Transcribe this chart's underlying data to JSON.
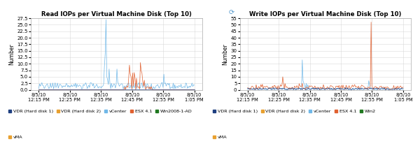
{
  "title_left": "Read IOPs per Virtual Machine Disk (Top 10)",
  "title_right": "Write IOPs per Virtual Machine Disk (Top 10)",
  "ylabel": "Number",
  "xlabel_dates": [
    "8/5/10",
    "8/5/10",
    "8/5/10",
    "8/5/10",
    "8/5/10",
    "8/5/10"
  ],
  "xlabel_times": [
    "12:15 PM",
    "12:25 PM",
    "12:35 PM",
    "12:45 PM",
    "12:55 PM",
    "1:05 PM"
  ],
  "ylim_left": [
    0,
    27.5
  ],
  "yticks_left": [
    0.0,
    2.5,
    5.0,
    7.5,
    10.0,
    12.5,
    15.0,
    17.5,
    20.0,
    22.5,
    25.0,
    27.5
  ],
  "ylim_right": [
    0,
    55
  ],
  "yticks_right": [
    0,
    5,
    10,
    15,
    20,
    25,
    30,
    35,
    40,
    45,
    50,
    55
  ],
  "colors": {
    "vdr1": "#1f3f80",
    "vdr2": "#e8a030",
    "vcenter": "#70b8e8",
    "esx": "#e06030",
    "win": "#207820",
    "vma": "#e8a030",
    "background": "#f0f0f0",
    "grid": "#d0d0d0",
    "plot_bg": "#ffffff"
  },
  "legend_left": [
    "VDR (Hard disk 1)",
    "VDR (Hard disk 2)",
    "vCenter",
    "ESX 4.1",
    "Win2008-1-AD",
    "vMA"
  ],
  "legend_right": [
    "VDR (Hard disk 1)",
    "VDR (Hard disk 2)",
    "vCenter",
    "ESX 4.1",
    "Win2",
    "vMA"
  ],
  "num_points": 200
}
